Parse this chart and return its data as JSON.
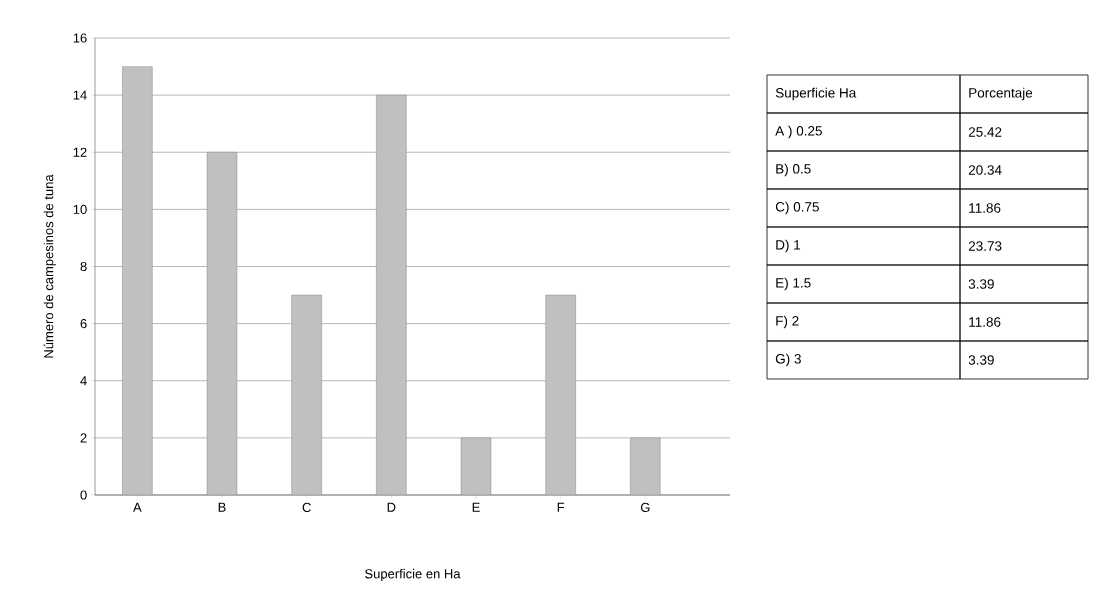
{
  "chart_data": {
    "type": "bar",
    "xlabel": "Superficie en Ha",
    "ylabel": "Número de campesinos de tuna",
    "categories": [
      "A",
      "B",
      "C",
      "D",
      "E",
      "F",
      "G"
    ],
    "values": [
      15,
      12,
      7,
      14,
      2,
      7,
      2
    ],
    "color": "#c0c0c0",
    "ylim": [
      0,
      16
    ],
    "yticks": [
      0,
      2,
      4,
      6,
      8,
      10,
      12,
      14,
      16
    ],
    "grid": "y",
    "annotations": [
      "Superficie Ha",
      "Porcentaje",
      "A ) 0.25",
      "25.42",
      "B) 0.5",
      "20.34",
      "C) 0.75",
      "11.86",
      "D) 1",
      "23.73",
      "E) 1.5",
      "3.39",
      "F) 2",
      "11.86",
      "G) 3",
      "3.39"
    ]
  }
}
